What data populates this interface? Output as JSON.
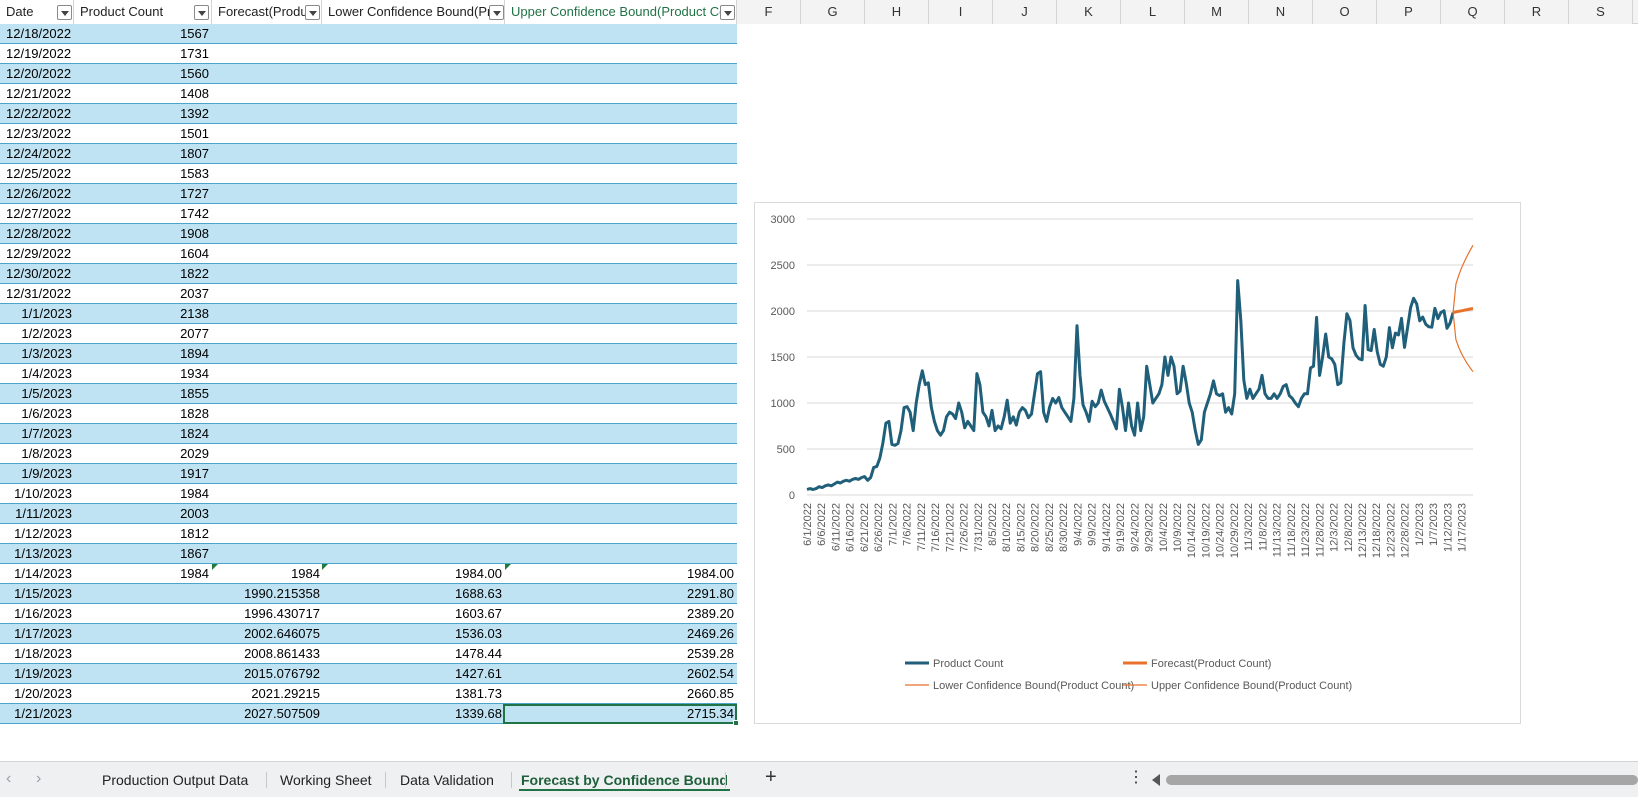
{
  "headers": {
    "col_a": "Date",
    "col_b": "Product Count",
    "col_c": "Forecast(Produ",
    "col_d": "Lower Confidence Bound(Pr",
    "col_e": "Upper Confidence Bound(Product Co",
    "letters": [
      "F",
      "G",
      "H",
      "I",
      "J",
      "K",
      "L",
      "M",
      "N",
      "O",
      "P",
      "Q",
      "R",
      "S"
    ]
  },
  "rows": [
    {
      "date": "12/18/2022",
      "count": "1567",
      "f": "",
      "l": "",
      "u": ""
    },
    {
      "date": "12/19/2022",
      "count": "1731",
      "f": "",
      "l": "",
      "u": ""
    },
    {
      "date": "12/20/2022",
      "count": "1560",
      "f": "",
      "l": "",
      "u": ""
    },
    {
      "date": "12/21/2022",
      "count": "1408",
      "f": "",
      "l": "",
      "u": ""
    },
    {
      "date": "12/22/2022",
      "count": "1392",
      "f": "",
      "l": "",
      "u": ""
    },
    {
      "date": "12/23/2022",
      "count": "1501",
      "f": "",
      "l": "",
      "u": ""
    },
    {
      "date": "12/24/2022",
      "count": "1807",
      "f": "",
      "l": "",
      "u": ""
    },
    {
      "date": "12/25/2022",
      "count": "1583",
      "f": "",
      "l": "",
      "u": ""
    },
    {
      "date": "12/26/2022",
      "count": "1727",
      "f": "",
      "l": "",
      "u": ""
    },
    {
      "date": "12/27/2022",
      "count": "1742",
      "f": "",
      "l": "",
      "u": ""
    },
    {
      "date": "12/28/2022",
      "count": "1908",
      "f": "",
      "l": "",
      "u": ""
    },
    {
      "date": "12/29/2022",
      "count": "1604",
      "f": "",
      "l": "",
      "u": ""
    },
    {
      "date": "12/30/2022",
      "count": "1822",
      "f": "",
      "l": "",
      "u": ""
    },
    {
      "date": "12/31/2022",
      "count": "2037",
      "f": "",
      "l": "",
      "u": ""
    },
    {
      "date": "1/1/2023",
      "count": "2138",
      "f": "",
      "l": "",
      "u": ""
    },
    {
      "date": "1/2/2023",
      "count": "2077",
      "f": "",
      "l": "",
      "u": ""
    },
    {
      "date": "1/3/2023",
      "count": "1894",
      "f": "",
      "l": "",
      "u": ""
    },
    {
      "date": "1/4/2023",
      "count": "1934",
      "f": "",
      "l": "",
      "u": ""
    },
    {
      "date": "1/5/2023",
      "count": "1855",
      "f": "",
      "l": "",
      "u": ""
    },
    {
      "date": "1/6/2023",
      "count": "1828",
      "f": "",
      "l": "",
      "u": ""
    },
    {
      "date": "1/7/2023",
      "count": "1824",
      "f": "",
      "l": "",
      "u": ""
    },
    {
      "date": "1/8/2023",
      "count": "2029",
      "f": "",
      "l": "",
      "u": ""
    },
    {
      "date": "1/9/2023",
      "count": "1917",
      "f": "",
      "l": "",
      "u": ""
    },
    {
      "date": "1/10/2023",
      "count": "1984",
      "f": "",
      "l": "",
      "u": ""
    },
    {
      "date": "1/11/2023",
      "count": "2003",
      "f": "",
      "l": "",
      "u": ""
    },
    {
      "date": "1/12/2023",
      "count": "1812",
      "f": "",
      "l": "",
      "u": ""
    },
    {
      "date": "1/13/2023",
      "count": "1867",
      "f": "",
      "l": "",
      "u": ""
    },
    {
      "date": "1/14/2023",
      "count": "1984",
      "f": "1984",
      "l": "1984.00",
      "u": "1984.00"
    },
    {
      "date": "1/15/2023",
      "count": "",
      "f": "1990.215358",
      "l": "1688.63",
      "u": "2291.80"
    },
    {
      "date": "1/16/2023",
      "count": "",
      "f": "1996.430717",
      "l": "1603.67",
      "u": "2389.20"
    },
    {
      "date": "1/17/2023",
      "count": "",
      "f": "2002.646075",
      "l": "1536.03",
      "u": "2469.26"
    },
    {
      "date": "1/18/2023",
      "count": "",
      "f": "2008.861433",
      "l": "1478.44",
      "u": "2539.28"
    },
    {
      "date": "1/19/2023",
      "count": "",
      "f": "2015.076792",
      "l": "1427.61",
      "u": "2602.54"
    },
    {
      "date": "1/20/2023",
      "count": "",
      "f": "2021.29215",
      "l": "1381.73",
      "u": "2660.85"
    },
    {
      "date": "1/21/2023",
      "count": "",
      "f": "2027.507509",
      "l": "1339.68",
      "u": "2715.34"
    }
  ],
  "tabs": {
    "sheets": [
      "Production Output Data",
      "Working Sheet",
      "Data Validation",
      "Forecast by Confidence Bound"
    ],
    "active_index": 3,
    "add_label": "+",
    "more_label": "⋮"
  },
  "chart_data": {
    "type": "line",
    "ylim": [
      0,
      3000
    ],
    "yticks": [
      "0",
      "500",
      "1000",
      "1500",
      "2000",
      "2500",
      "3000"
    ],
    "xtick_labels": [
      "6/1/2022",
      "6/6/2022",
      "6/11/2022",
      "6/16/2022",
      "6/21/2022",
      "6/26/2022",
      "7/1/2022",
      "7/6/2022",
      "7/11/2022",
      "7/16/2022",
      "7/21/2022",
      "7/26/2022",
      "7/31/2022",
      "8/5/2022",
      "8/10/2022",
      "8/15/2022",
      "8/20/2022",
      "8/25/2022",
      "8/30/2022",
      "9/4/2022",
      "9/9/2022",
      "9/14/2022",
      "9/19/2022",
      "9/24/2022",
      "9/29/2022",
      "10/4/2022",
      "10/9/2022",
      "10/14/2022",
      "10/19/2022",
      "10/24/2022",
      "10/29/2022",
      "11/3/2022",
      "11/8/2022",
      "11/13/2022",
      "11/18/2022",
      "11/23/2022",
      "11/28/2022",
      "12/3/2022",
      "12/8/2022",
      "12/13/2022",
      "12/18/2022",
      "12/23/2022",
      "12/28/2022",
      "1/2/2023",
      "1/7/2023",
      "1/12/2023",
      "1/17/2023"
    ],
    "x_start": "6/1/2022",
    "colors": {
      "product": "#1f5f7a",
      "forecast": "#e8722b",
      "lower": "#e8722b",
      "upper": "#e8722b"
    },
    "legend": [
      "Product Count",
      "Forecast(Product Count)",
      "Lower Confidence Bound(Product Count)",
      "Upper Confidence Bound(Product Count)"
    ],
    "legend_position": "bottom",
    "grid": true,
    "series": [
      {
        "name": "Product Count",
        "values": [
          60,
          70,
          60,
          70,
          90,
          80,
          100,
          110,
          100,
          120,
          140,
          130,
          150,
          160,
          150,
          170,
          180,
          170,
          190,
          200,
          160,
          190,
          300,
          310,
          400,
          560,
          780,
          800,
          550,
          540,
          560,
          700,
          950,
          960,
          900,
          700,
          1000,
          1200,
          1350,
          1200,
          1220,
          950,
          800,
          700,
          650,
          700,
          850,
          900,
          880,
          830,
          1000,
          900,
          730,
          800,
          750,
          700,
          1320,
          1200,
          900,
          850,
          750,
          920,
          700,
          750,
          720,
          850,
          1030,
          780,
          850,
          760,
          900,
          950,
          920,
          840,
          880,
          1100,
          1320,
          1340,
          900,
          800,
          960,
          1050,
          1000,
          1060,
          950,
          900,
          850,
          800,
          1050,
          1840,
          1300,
          980,
          900,
          800,
          1020,
          960,
          1000,
          1140,
          1020,
          950,
          880,
          800,
          720,
          1150,
          950,
          700,
          1000,
          750,
          650,
          1000,
          700,
          850,
          1400,
          1200,
          1000,
          1050,
          1100,
          1200,
          1500,
          1300,
          1500,
          1400,
          1100,
          1130,
          1400,
          1220,
          1000,
          900,
          700,
          550,
          600,
          900,
          1000,
          1100,
          1240,
          1100,
          1080,
          1100,
          900,
          950,
          880,
          1100,
          2330,
          1900,
          1250,
          1050,
          1150,
          1050,
          1100,
          1150,
          1300,
          1100,
          1050,
          1050,
          1100,
          1050,
          1100,
          1180,
          1200,
          1080,
          1050,
          1000,
          960,
          1050,
          1100,
          1100,
          1380,
          1400,
          1930,
          1300,
          1500,
          1750,
          1500,
          1480,
          1420,
          1200,
          1220,
          1650,
          1970,
          1900,
          1600,
          1520,
          1480,
          1470,
          2060,
          1580,
          1570,
          1800,
          1560,
          1420,
          1400,
          1500,
          1820,
          1600,
          1760,
          1740,
          1920,
          1604,
          1822,
          2037,
          2138,
          2077,
          1894,
          1934,
          1855,
          1828,
          1824,
          2029,
          1917,
          1984,
          2003,
          1812,
          1867,
          1984
        ]
      },
      {
        "name": "Forecast(Product Count)",
        "values": [
          1984,
          1990.215358,
          1996.430717,
          2002.646075,
          2008.861433,
          2015.076792,
          2021.29215,
          2027.507509
        ]
      },
      {
        "name": "Lower Confidence Bound(Product Count)",
        "values": [
          1984,
          1688.63,
          1603.67,
          1536.03,
          1478.44,
          1427.61,
          1381.73,
          1339.68
        ]
      },
      {
        "name": "Upper Confidence Bound(Product Count)",
        "values": [
          1984,
          2291.8,
          2389.2,
          2469.26,
          2539.28,
          2602.54,
          2660.85,
          2715.34
        ]
      }
    ]
  }
}
